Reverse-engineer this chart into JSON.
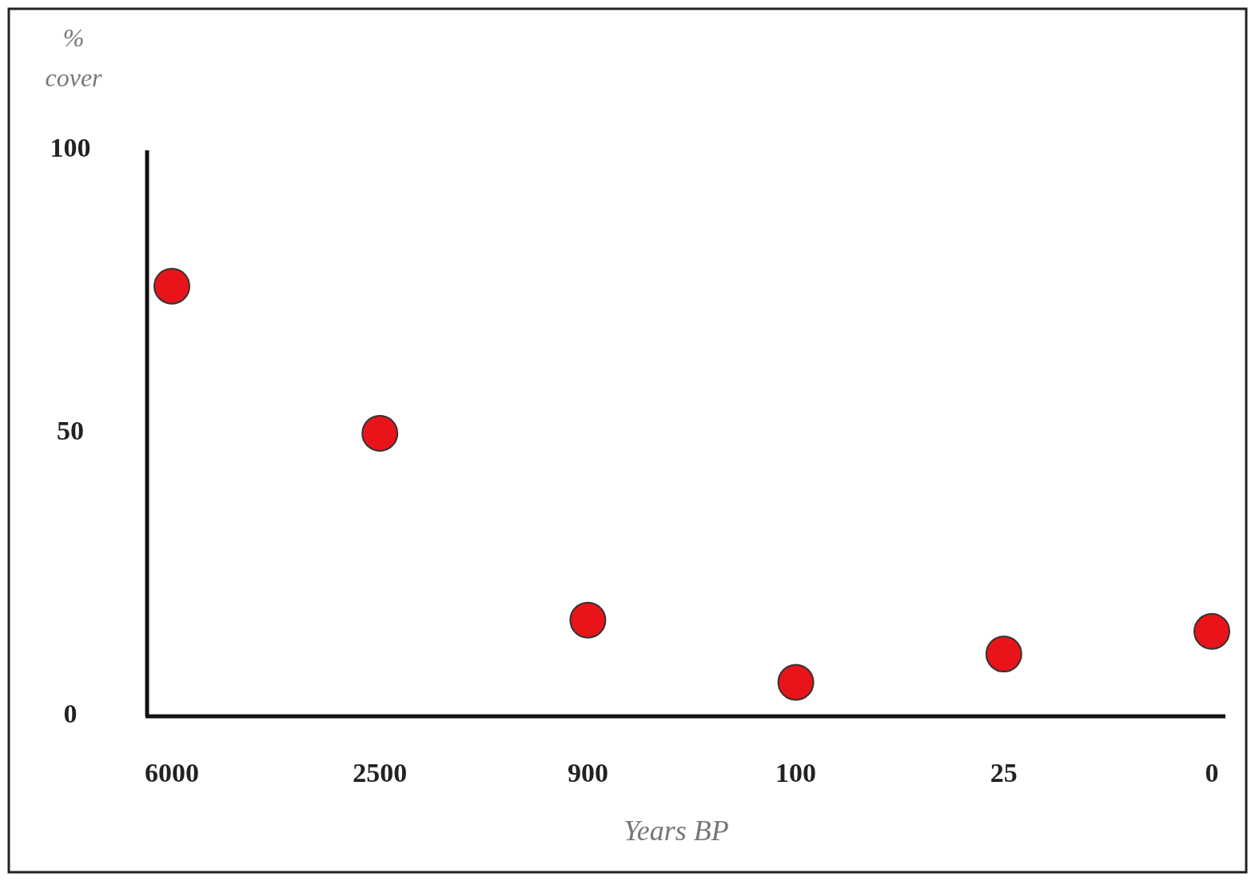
{
  "chart_data": {
    "type": "scatter",
    "ylabel": "% cover",
    "xlabel": "Years BP",
    "categories": [
      "6000",
      "2500",
      "900",
      "100",
      "25",
      "0"
    ],
    "values": [
      76,
      50,
      17,
      6,
      11,
      15
    ],
    "color": "#e8141a",
    "marker": "circle",
    "ylim": [
      0,
      100
    ],
    "yticks": [
      0,
      50,
      100
    ]
  }
}
